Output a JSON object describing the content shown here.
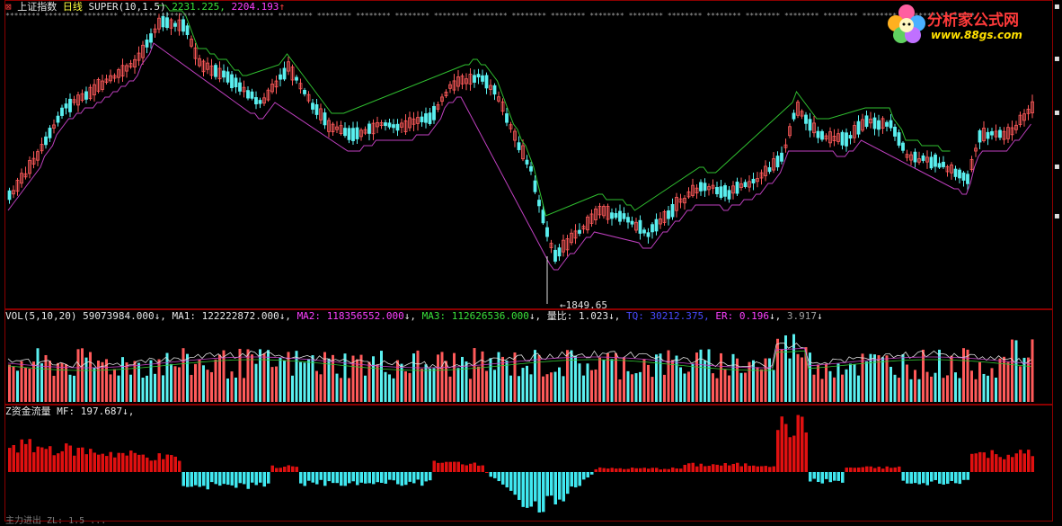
{
  "main": {
    "icon": "close-box-icon",
    "security_name": "上证指数",
    "period": "日线",
    "indicator": "SUPER(10,1.5)",
    "val_green": "2231.225,",
    "val_magenta": "2204.193",
    "arrow_up": "↑",
    "stars": "******** ******** ******** ******** ******** ******** ******** ******** ******** ******** ******** ******** ******** ******** ******** ******** ******** ******** ******** ******** ******** ******** ******** ******** ********",
    "low_label": "1849.65"
  },
  "vol": {
    "label": "VOL(5,10,20)",
    "value": "59073984.000",
    "arrow": "↓,",
    "ma1_label": "MA1:",
    "ma1_value": "122222872.000",
    "ma2_label": "MA2:",
    "ma2_value": "118356552.000",
    "ma3_label": "MA3:",
    "ma3_value": "112626536.000",
    "ratio_label": "量比:",
    "ratio_value": "1.023",
    "tq_label": "TQ:",
    "tq_value": "30212.375,",
    "er_label": "ER:",
    "er_value": "0.196",
    "last_value": "3.917"
  },
  "mf": {
    "label": "Z资金流量",
    "mf_label": "MF:",
    "mf_value": "197.687",
    "arrow": "↓,"
  },
  "logo": {
    "text": "分析家公式网",
    "url": "www.88gs.com"
  },
  "bottom": {
    "text": "主力进出 ZL: 1.5 ..."
  },
  "colors": {
    "up": "#ff5a5a",
    "down": "#5af0f0",
    "mf_up": "#e01010",
    "mf_down": "#40e8f0",
    "support": "#c040c0",
    "resistance": "#30c030",
    "border": "#8b0000"
  }
}
